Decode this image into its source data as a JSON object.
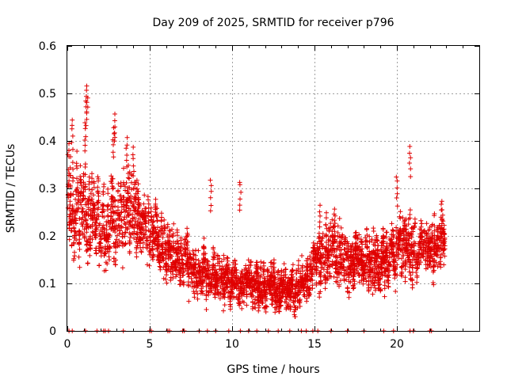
{
  "chart_data": {
    "type": "scatter",
    "title": "Day 209 of 2025, SRMTID for receiver p796",
    "xlabel": "GPS time / hours",
    "ylabel": "SRMTID / TECUs",
    "xlim": [
      0,
      25
    ],
    "ylim": [
      0,
      0.6
    ],
    "grid": true,
    "marker": "+",
    "series_color": "#e00000",
    "x_ticks": [
      0,
      5,
      10,
      15,
      20
    ],
    "x_tick_labels": [
      "0",
      "5",
      "10",
      "15",
      "20"
    ],
    "y_ticks": [
      0,
      0.1,
      0.2,
      0.3,
      0.4,
      0.5,
      0.6
    ],
    "y_tick_labels": [
      "0",
      "0.1",
      "0.2",
      "0.3",
      "0.4",
      "0.5",
      "0.6"
    ],
    "envelope": {
      "x": [
        0.0,
        1.0,
        2.0,
        3.0,
        4.0,
        5.0,
        6.0,
        7.0,
        8.0,
        9.0,
        10.0,
        11.0,
        12.0,
        13.0,
        14.0,
        15.0,
        16.0,
        17.0,
        18.0,
        19.0,
        20.0,
        21.0,
        22.0,
        22.9
      ],
      "center": [
        0.28,
        0.25,
        0.22,
        0.24,
        0.26,
        0.22,
        0.17,
        0.15,
        0.13,
        0.12,
        0.1,
        0.1,
        0.1,
        0.09,
        0.09,
        0.13,
        0.17,
        0.15,
        0.15,
        0.15,
        0.17,
        0.18,
        0.17,
        0.19
      ],
      "spread": [
        0.07,
        0.07,
        0.06,
        0.07,
        0.06,
        0.05,
        0.04,
        0.04,
        0.04,
        0.03,
        0.03,
        0.03,
        0.03,
        0.03,
        0.03,
        0.04,
        0.05,
        0.04,
        0.04,
        0.04,
        0.04,
        0.05,
        0.04,
        0.04
      ]
    },
    "spikes": [
      {
        "x": 0.3,
        "y": 0.45
      },
      {
        "x": 1.2,
        "y": 0.52
      },
      {
        "x": 1.15,
        "y": 0.5
      },
      {
        "x": 1.1,
        "y": 0.44
      },
      {
        "x": 2.9,
        "y": 0.46
      },
      {
        "x": 2.8,
        "y": 0.43
      },
      {
        "x": 3.6,
        "y": 0.41
      },
      {
        "x": 4.0,
        "y": 0.39
      },
      {
        "x": 8.7,
        "y": 0.32
      },
      {
        "x": 10.5,
        "y": 0.32
      },
      {
        "x": 20.0,
        "y": 0.33
      },
      {
        "x": 20.8,
        "y": 0.39
      },
      {
        "x": 15.3,
        "y": 0.27
      },
      {
        "x": 16.2,
        "y": 0.26
      },
      {
        "x": 22.7,
        "y": 0.28
      }
    ],
    "zero_points_x": [
      0.1,
      0.3,
      1.1,
      1.8,
      2.2,
      2.3,
      2.5,
      3.4,
      5.0,
      5.1,
      6.1,
      6.2,
      7.0,
      7.1,
      8.0,
      8.5,
      9.0,
      9.8,
      10.5,
      11.0,
      11.5,
      12.2,
      12.8,
      13.5,
      14.2,
      14.5,
      14.9,
      15.2,
      16.0,
      17.0,
      18.0,
      19.2,
      19.8,
      20.8,
      21.0,
      22.0,
      22.1
    ]
  }
}
